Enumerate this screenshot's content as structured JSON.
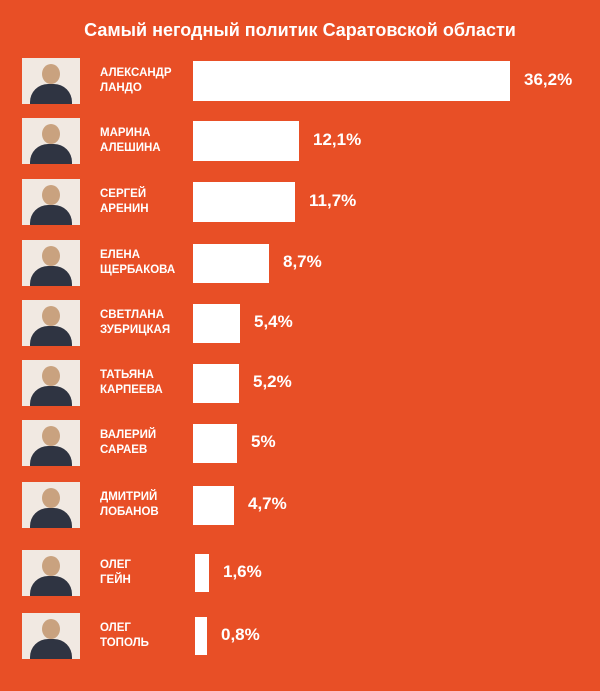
{
  "chart_data": {
    "type": "bar",
    "orientation": "horizontal",
    "title": "Самый негодный политик Саратовской области",
    "categories": [
      [
        "АЛЕКСАНДР",
        "ЛАНДО"
      ],
      [
        "МАРИНА",
        "АЛЕШИНА"
      ],
      [
        "СЕРГЕЙ",
        "АРЕНИН"
      ],
      [
        "ЕЛЕНА",
        "ЩЕРБАКОВА"
      ],
      [
        "СВЕТЛАНА",
        "ЗУБРИЦКАЯ"
      ],
      [
        "ТАТЬЯНА",
        "КАРПЕЕВА"
      ],
      [
        "ВАЛЕРИЙ",
        "САРАЕВ"
      ],
      [
        "ДМИТРИЙ",
        "ЛОБАНОВ"
      ],
      [
        "ОЛЕГ",
        "ГЕЙН"
      ],
      [
        "ОЛЕГ",
        "ТОПОЛЬ"
      ]
    ],
    "values": [
      36.2,
      12.1,
      11.7,
      8.7,
      5.4,
      5.2,
      5,
      4.7,
      1.6,
      0.8
    ],
    "value_labels": [
      "36,2%",
      "12,1%",
      "11,7%",
      "8,7%",
      "5,4%",
      "5,2%",
      "5%",
      "4,7%",
      "1,6%",
      "0,8%"
    ],
    "xlim": [
      0,
      36.2
    ],
    "grid": false,
    "legend": "none",
    "colors": {
      "background": "#e84f26",
      "bar": "#ffffff",
      "text": "#ffffff"
    }
  }
}
